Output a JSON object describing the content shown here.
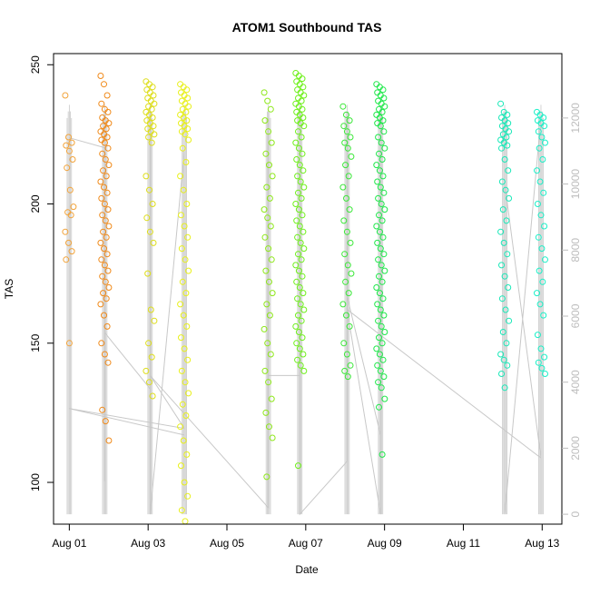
{
  "chart_data": {
    "type": "scatter",
    "title": "ATOM1 Southbound TAS",
    "xlabel": "Date",
    "ylabel": "TAS",
    "x_ticks": [
      "Aug 01",
      "Aug 03",
      "Aug 05",
      "Aug 07",
      "Aug 09",
      "Aug 11",
      "Aug 13"
    ],
    "x_tick_days": [
      1,
      3,
      5,
      7,
      9,
      11,
      13
    ],
    "xlim": [
      0.6,
      13.5
    ],
    "ylim": [
      85,
      254
    ],
    "y_ticks": [
      100,
      150,
      200,
      250
    ],
    "y2_ticks": [
      0,
      2000,
      4000,
      6000,
      8000,
      10000,
      12000
    ],
    "y2lim": [
      -300,
      13950
    ],
    "grid": false,
    "secondary_line_color": "#c8c8c8",
    "secondary_tick_color": "#bdbdbd",
    "marker": "open-circle",
    "series": [
      {
        "day": 1.0,
        "color": "#f2a33a",
        "values": [
          239,
          224,
          222,
          221,
          219,
          216,
          213,
          205,
          199,
          197,
          196,
          190,
          186,
          183,
          180,
          150
        ]
      },
      {
        "day": 1.9,
        "color": "#f08a1a",
        "values": [
          246,
          243,
          239,
          236,
          234,
          233,
          231,
          230,
          229,
          228,
          227,
          226,
          225,
          224,
          223,
          222,
          220,
          218,
          216,
          214,
          212,
          210,
          208,
          206,
          204,
          202,
          200,
          198,
          196,
          194,
          192,
          190,
          188,
          186,
          184,
          182,
          180,
          178,
          176,
          174,
          172,
          170,
          168,
          166,
          164,
          160,
          156,
          150,
          146,
          143,
          126,
          122,
          115
        ]
      },
      {
        "day": 3.05,
        "color": "#dede1a",
        "values": [
          244,
          243,
          242,
          241,
          240,
          239,
          238,
          237,
          236,
          235,
          234,
          233,
          232,
          231,
          230,
          229,
          228,
          227,
          226,
          225,
          224,
          222,
          210,
          205,
          200,
          195,
          190,
          186,
          175,
          162,
          158,
          150,
          145,
          140,
          136,
          131
        ]
      },
      {
        "day": 3.92,
        "color": "#e8f01a",
        "values": [
          243,
          242,
          241,
          240,
          239,
          238,
          237,
          236,
          235,
          234,
          233,
          232,
          231,
          230,
          229,
          228,
          227,
          226,
          225,
          223,
          220,
          215,
          210,
          205,
          200,
          196,
          192,
          188,
          184,
          180,
          176,
          172,
          168,
          164,
          160,
          156,
          152,
          148,
          144,
          140,
          136,
          132,
          128,
          124,
          120,
          115,
          110,
          106,
          100,
          95,
          90,
          86
        ]
      },
      {
        "day": 6.05,
        "color": "#8ee81a",
        "values": [
          240,
          237,
          234,
          230,
          226,
          222,
          218,
          214,
          210,
          206,
          202,
          198,
          195,
          192,
          188,
          184,
          180,
          176,
          172,
          168,
          164,
          160,
          155,
          150,
          146,
          140,
          136,
          130,
          125,
          120,
          116,
          102
        ]
      },
      {
        "day": 6.85,
        "color": "#6ef01a",
        "values": [
          247,
          246,
          245,
          244,
          243,
          242,
          241,
          240,
          239,
          238,
          237,
          236,
          235,
          234,
          233,
          232,
          231,
          230,
          229,
          228,
          226,
          224,
          222,
          220,
          218,
          216,
          214,
          212,
          210,
          208,
          206,
          204,
          202,
          200,
          198,
          196,
          194,
          192,
          190,
          188,
          186,
          184,
          182,
          180,
          178,
          176,
          174,
          172,
          170,
          168,
          166,
          164,
          162,
          160,
          158,
          156,
          154,
          152,
          150,
          148,
          146,
          144,
          142,
          140,
          106
        ]
      },
      {
        "day": 8.05,
        "color": "#3ce83a",
        "values": [
          235,
          232,
          230,
          228,
          226,
          224,
          222,
          220,
          217,
          214,
          210,
          206,
          202,
          198,
          194,
          190,
          186,
          182,
          178,
          175,
          172,
          168,
          164,
          160,
          156,
          150,
          146,
          142,
          140,
          138
        ]
      },
      {
        "day": 8.9,
        "color": "#1ce848",
        "values": [
          243,
          242,
          241,
          240,
          239,
          238,
          237,
          236,
          235,
          234,
          233,
          232,
          231,
          230,
          229,
          228,
          226,
          224,
          222,
          220,
          218,
          216,
          214,
          212,
          210,
          208,
          206,
          204,
          202,
          200,
          198,
          196,
          194,
          192,
          190,
          188,
          186,
          184,
          182,
          180,
          178,
          176,
          174,
          172,
          170,
          168,
          166,
          164,
          162,
          160,
          158,
          156,
          154,
          152,
          150,
          148,
          146,
          144,
          142,
          140,
          138,
          136,
          134,
          130,
          127,
          110
        ]
      },
      {
        "day": 12.05,
        "color": "#1ae8b8",
        "values": [
          236,
          233,
          232,
          231,
          230,
          229,
          228,
          227,
          226,
          225,
          224,
          223,
          222,
          221,
          220,
          216,
          212,
          208,
          205,
          202,
          198,
          194,
          190,
          186,
          182,
          178,
          174,
          170,
          166,
          162,
          158,
          154,
          150,
          146,
          144,
          142,
          139,
          134
        ]
      },
      {
        "day": 12.97,
        "color": "#1af0c8",
        "values": [
          233,
          232,
          231,
          230,
          229,
          228,
          226,
          224,
          222,
          220,
          216,
          212,
          208,
          204,
          200,
          196,
          192,
          188,
          184,
          180,
          176,
          172,
          168,
          164,
          160,
          153,
          148,
          145,
          143,
          141,
          139
        ]
      }
    ],
    "secondary_series": {
      "points": [
        [
          1.0,
          11400
        ],
        [
          1.9,
          11100
        ],
        [
          1.9,
          1000
        ],
        [
          1.9,
          5500
        ],
        [
          3.05,
          3800
        ],
        [
          3.05,
          12400
        ],
        [
          3.05,
          0
        ],
        [
          3.92,
          11000
        ],
        [
          3.92,
          400
        ],
        [
          3.92,
          2400
        ],
        [
          1.0,
          3200
        ],
        [
          3.92,
          2600
        ],
        [
          3.05,
          4200
        ],
        [
          6.05,
          200
        ],
        [
          6.05,
          1700
        ],
        [
          6.05,
          12000
        ],
        [
          6.05,
          4200
        ],
        [
          6.85,
          4200
        ],
        [
          6.85,
          12400
        ],
        [
          6.85,
          0
        ],
        [
          8.05,
          1600
        ],
        [
          8.05,
          12000
        ],
        [
          8.05,
          6600
        ],
        [
          8.9,
          2400
        ],
        [
          8.9,
          12300
        ],
        [
          8.9,
          0
        ],
        [
          8.05,
          6200
        ],
        [
          12.97,
          1700
        ],
        [
          12.05,
          10000
        ],
        [
          12.05,
          12000
        ],
        [
          12.05,
          0
        ],
        [
          12.97,
          12000
        ],
        [
          12.97,
          0
        ],
        [
          12.97,
          1300
        ]
      ]
    }
  }
}
